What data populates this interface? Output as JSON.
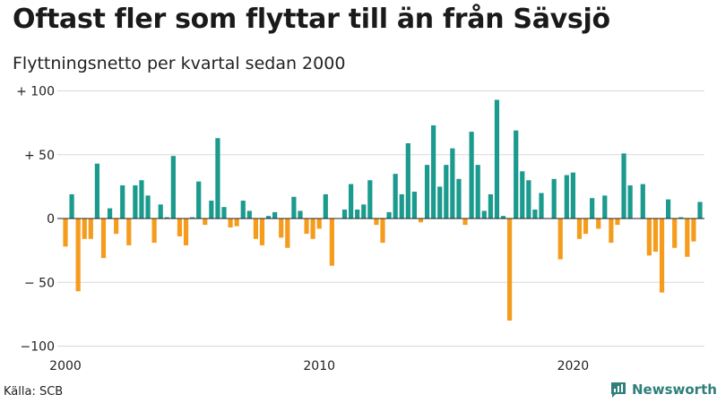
{
  "colors": {
    "positive": "#1b9a8e",
    "negative": "#f59c1d",
    "grid": "#d9d9d9",
    "brand": "#2f7f7a"
  },
  "source": "Källa: SCB",
  "brand": "Newsworthy",
  "chart_data": {
    "type": "bar",
    "title": "Oftast fler som flyttar till än från Sävsjö",
    "subtitle": "Flyttningsnetto per kvartal sedan 2000",
    "xlabel": "",
    "ylabel": "",
    "ylim": [
      -100,
      100
    ],
    "yticks": [
      {
        "value": 100,
        "label": "+ 100"
      },
      {
        "value": 50,
        "label": "+  50"
      },
      {
        "value": 0,
        "label": "0"
      },
      {
        "value": -50,
        "label": "− 50"
      },
      {
        "value": -100,
        "label": "−100"
      }
    ],
    "xticks": [
      {
        "index": 0,
        "label": "2000"
      },
      {
        "index": 40,
        "label": "2010"
      },
      {
        "index": 80,
        "label": "2020"
      }
    ],
    "start_period": "2000 Q1",
    "values": [
      -22,
      19,
      -57,
      -16,
      -16,
      43,
      -31,
      8,
      -12,
      26,
      -21,
      26,
      30,
      18,
      -19,
      11,
      1,
      49,
      -14,
      -21,
      1,
      29,
      -5,
      14,
      63,
      9,
      -7,
      -6,
      14,
      6,
      -16,
      -21,
      2,
      5,
      -15,
      -23,
      17,
      6,
      -12,
      -16,
      -8,
      19,
      -37,
      0,
      7,
      27,
      7,
      11,
      30,
      -5,
      -19,
      5,
      35,
      19,
      59,
      21,
      -3,
      42,
      73,
      25,
      42,
      55,
      31,
      -5,
      68,
      42,
      6,
      19,
      93,
      2,
      -80,
      69,
      37,
      30,
      7,
      20,
      0,
      31,
      -32,
      34,
      36,
      -16,
      -12,
      16,
      -8,
      18,
      -19,
      -5,
      51,
      26,
      0,
      27,
      -29,
      -26,
      -58,
      15,
      -23,
      1,
      -30,
      -18,
      13
    ]
  }
}
